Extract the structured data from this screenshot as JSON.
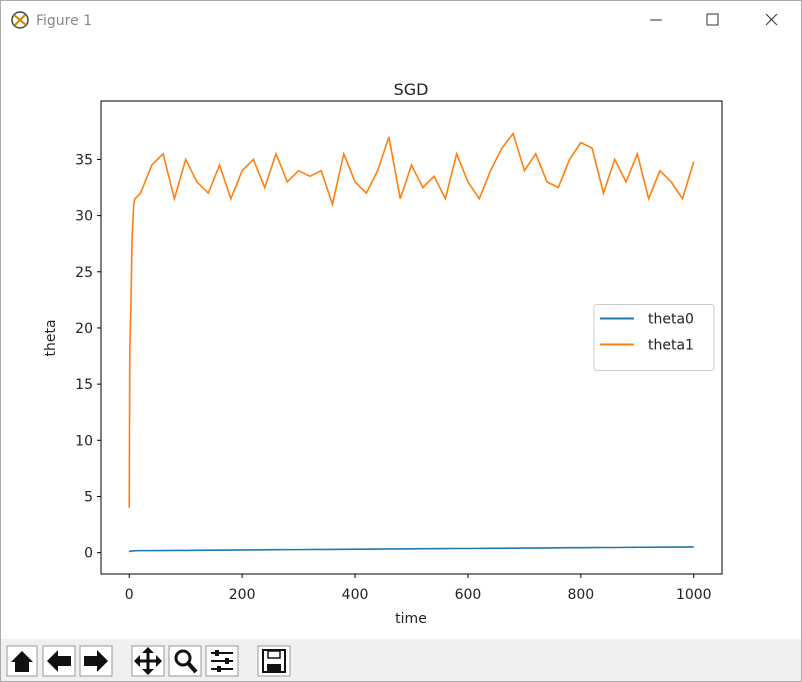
{
  "window": {
    "title": "Figure 1"
  },
  "chart_data": {
    "type": "line",
    "title": "SGD",
    "x_label": "time",
    "y_label": "theta",
    "x": [
      0,
      1,
      3,
      5,
      8,
      10,
      20,
      40,
      60,
      80,
      100,
      120,
      140,
      160,
      180,
      200,
      220,
      240,
      260,
      280,
      300,
      320,
      340,
      360,
      380,
      400,
      420,
      440,
      460,
      480,
      500,
      520,
      540,
      560,
      580,
      600,
      620,
      640,
      660,
      680,
      700,
      720,
      740,
      760,
      780,
      800,
      820,
      840,
      860,
      880,
      900,
      920,
      940,
      960,
      980,
      1000
    ],
    "series": [
      {
        "name": "theta0",
        "color": "#1f77b4",
        "values": [
          0.05,
          0.12,
          0.14,
          0.15,
          0.16,
          0.17,
          0.18,
          0.18,
          0.19,
          0.2,
          0.2,
          0.21,
          0.22,
          0.22,
          0.23,
          0.24,
          0.24,
          0.25,
          0.26,
          0.27,
          0.27,
          0.28,
          0.29,
          0.29,
          0.3,
          0.31,
          0.31,
          0.32,
          0.33,
          0.33,
          0.34,
          0.35,
          0.35,
          0.36,
          0.37,
          0.37,
          0.38,
          0.39,
          0.39,
          0.4,
          0.41,
          0.41,
          0.42,
          0.43,
          0.44,
          0.44,
          0.45,
          0.46,
          0.46,
          0.47,
          0.48,
          0.48,
          0.49,
          0.5,
          0.5,
          0.51
        ]
      },
      {
        "name": "theta1",
        "color": "#ff7f0e",
        "values": [
          4,
          18,
          22,
          28,
          31,
          31.5,
          32,
          34.5,
          35.5,
          31.5,
          35,
          33,
          32,
          34.5,
          31.5,
          34,
          35,
          32.5,
          35.5,
          33,
          34,
          33.5,
          34,
          31,
          35.5,
          33,
          32,
          34,
          37,
          31.5,
          34.5,
          32.5,
          33.5,
          31.5,
          35.5,
          33,
          31.5,
          34,
          36,
          37.3,
          34,
          35.5,
          33,
          32.5,
          35,
          36.5,
          36,
          32,
          35,
          33,
          35.5,
          31.5,
          34,
          33,
          31.5,
          34.8
        ]
      }
    ],
    "xlim": [
      -50,
      1050
    ],
    "xticks": [
      0,
      200,
      400,
      600,
      800,
      1000
    ],
    "ylim": [
      -1.9,
      40.2
    ],
    "yticks": [
      0,
      5,
      10,
      15,
      20,
      25,
      30,
      35
    ],
    "legend": "center right"
  }
}
